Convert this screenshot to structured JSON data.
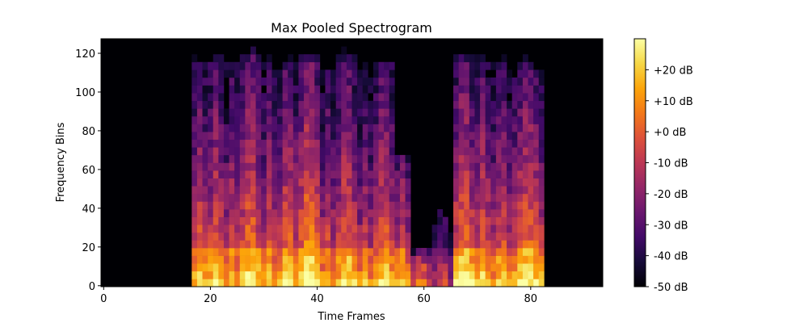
{
  "chart_data": {
    "type": "heatmap",
    "title": "Max Pooled Spectrogram",
    "xlabel": "Time Frames",
    "ylabel": "Frequency Bins",
    "xlim": [
      -0.5,
      93.5
    ],
    "ylim": [
      -0.5,
      127.5
    ],
    "x_ticks": [
      0,
      20,
      40,
      60,
      80
    ],
    "y_ticks": [
      0,
      20,
      40,
      60,
      80,
      100,
      120
    ],
    "colormap": "inferno",
    "colorbar": {
      "range_db": [
        -50,
        30
      ],
      "ticks": [
        -50,
        -40,
        -30,
        -20,
        -10,
        0,
        10,
        20
      ],
      "tick_labels": [
        "-50 dB",
        "-40 dB",
        "-30 dB",
        "-20 dB",
        "-10 dB",
        "+0 dB",
        "+10 dB",
        "+20 dB"
      ]
    },
    "background_db": -50,
    "segments": [
      {
        "x_start": 17,
        "x_end": 20,
        "top_bin": 123,
        "peak_db": 12
      },
      {
        "x_start": 20,
        "x_end": 23,
        "top_bin": 125,
        "peak_db": 14
      },
      {
        "x_start": 23,
        "x_end": 26,
        "top_bin": 122,
        "peak_db": 8
      },
      {
        "x_start": 26,
        "x_end": 30,
        "top_bin": 125,
        "peak_db": 18
      },
      {
        "x_start": 30,
        "x_end": 33,
        "top_bin": 122,
        "peak_db": 10
      },
      {
        "x_start": 33,
        "x_end": 37,
        "top_bin": 121,
        "peak_db": 14
      },
      {
        "x_start": 37,
        "x_end": 41,
        "top_bin": 124,
        "peak_db": 22
      },
      {
        "x_start": 41,
        "x_end": 44,
        "top_bin": 118,
        "peak_db": 8
      },
      {
        "x_start": 44,
        "x_end": 48,
        "top_bin": 124,
        "peak_db": 16
      },
      {
        "x_start": 48,
        "x_end": 51,
        "top_bin": 118,
        "peak_db": 6
      },
      {
        "x_start": 51,
        "x_end": 55,
        "top_bin": 122,
        "peak_db": 14
      },
      {
        "x_start": 55,
        "x_end": 58,
        "top_bin": 72,
        "peak_db": 6
      },
      {
        "x_start": 58,
        "x_end": 62,
        "top_bin": 20,
        "peak_db": -10
      },
      {
        "x_start": 62,
        "x_end": 66,
        "top_bin": 45,
        "peak_db": -18
      },
      {
        "x_start": 66,
        "x_end": 70,
        "top_bin": 124,
        "peak_db": 18
      },
      {
        "x_start": 70,
        "x_end": 73,
        "top_bin": 124,
        "peak_db": 14
      },
      {
        "x_start": 73,
        "x_end": 77,
        "top_bin": 122,
        "peak_db": 10
      },
      {
        "x_start": 77,
        "x_end": 83,
        "top_bin": 120,
        "peak_db": 16
      }
    ]
  }
}
